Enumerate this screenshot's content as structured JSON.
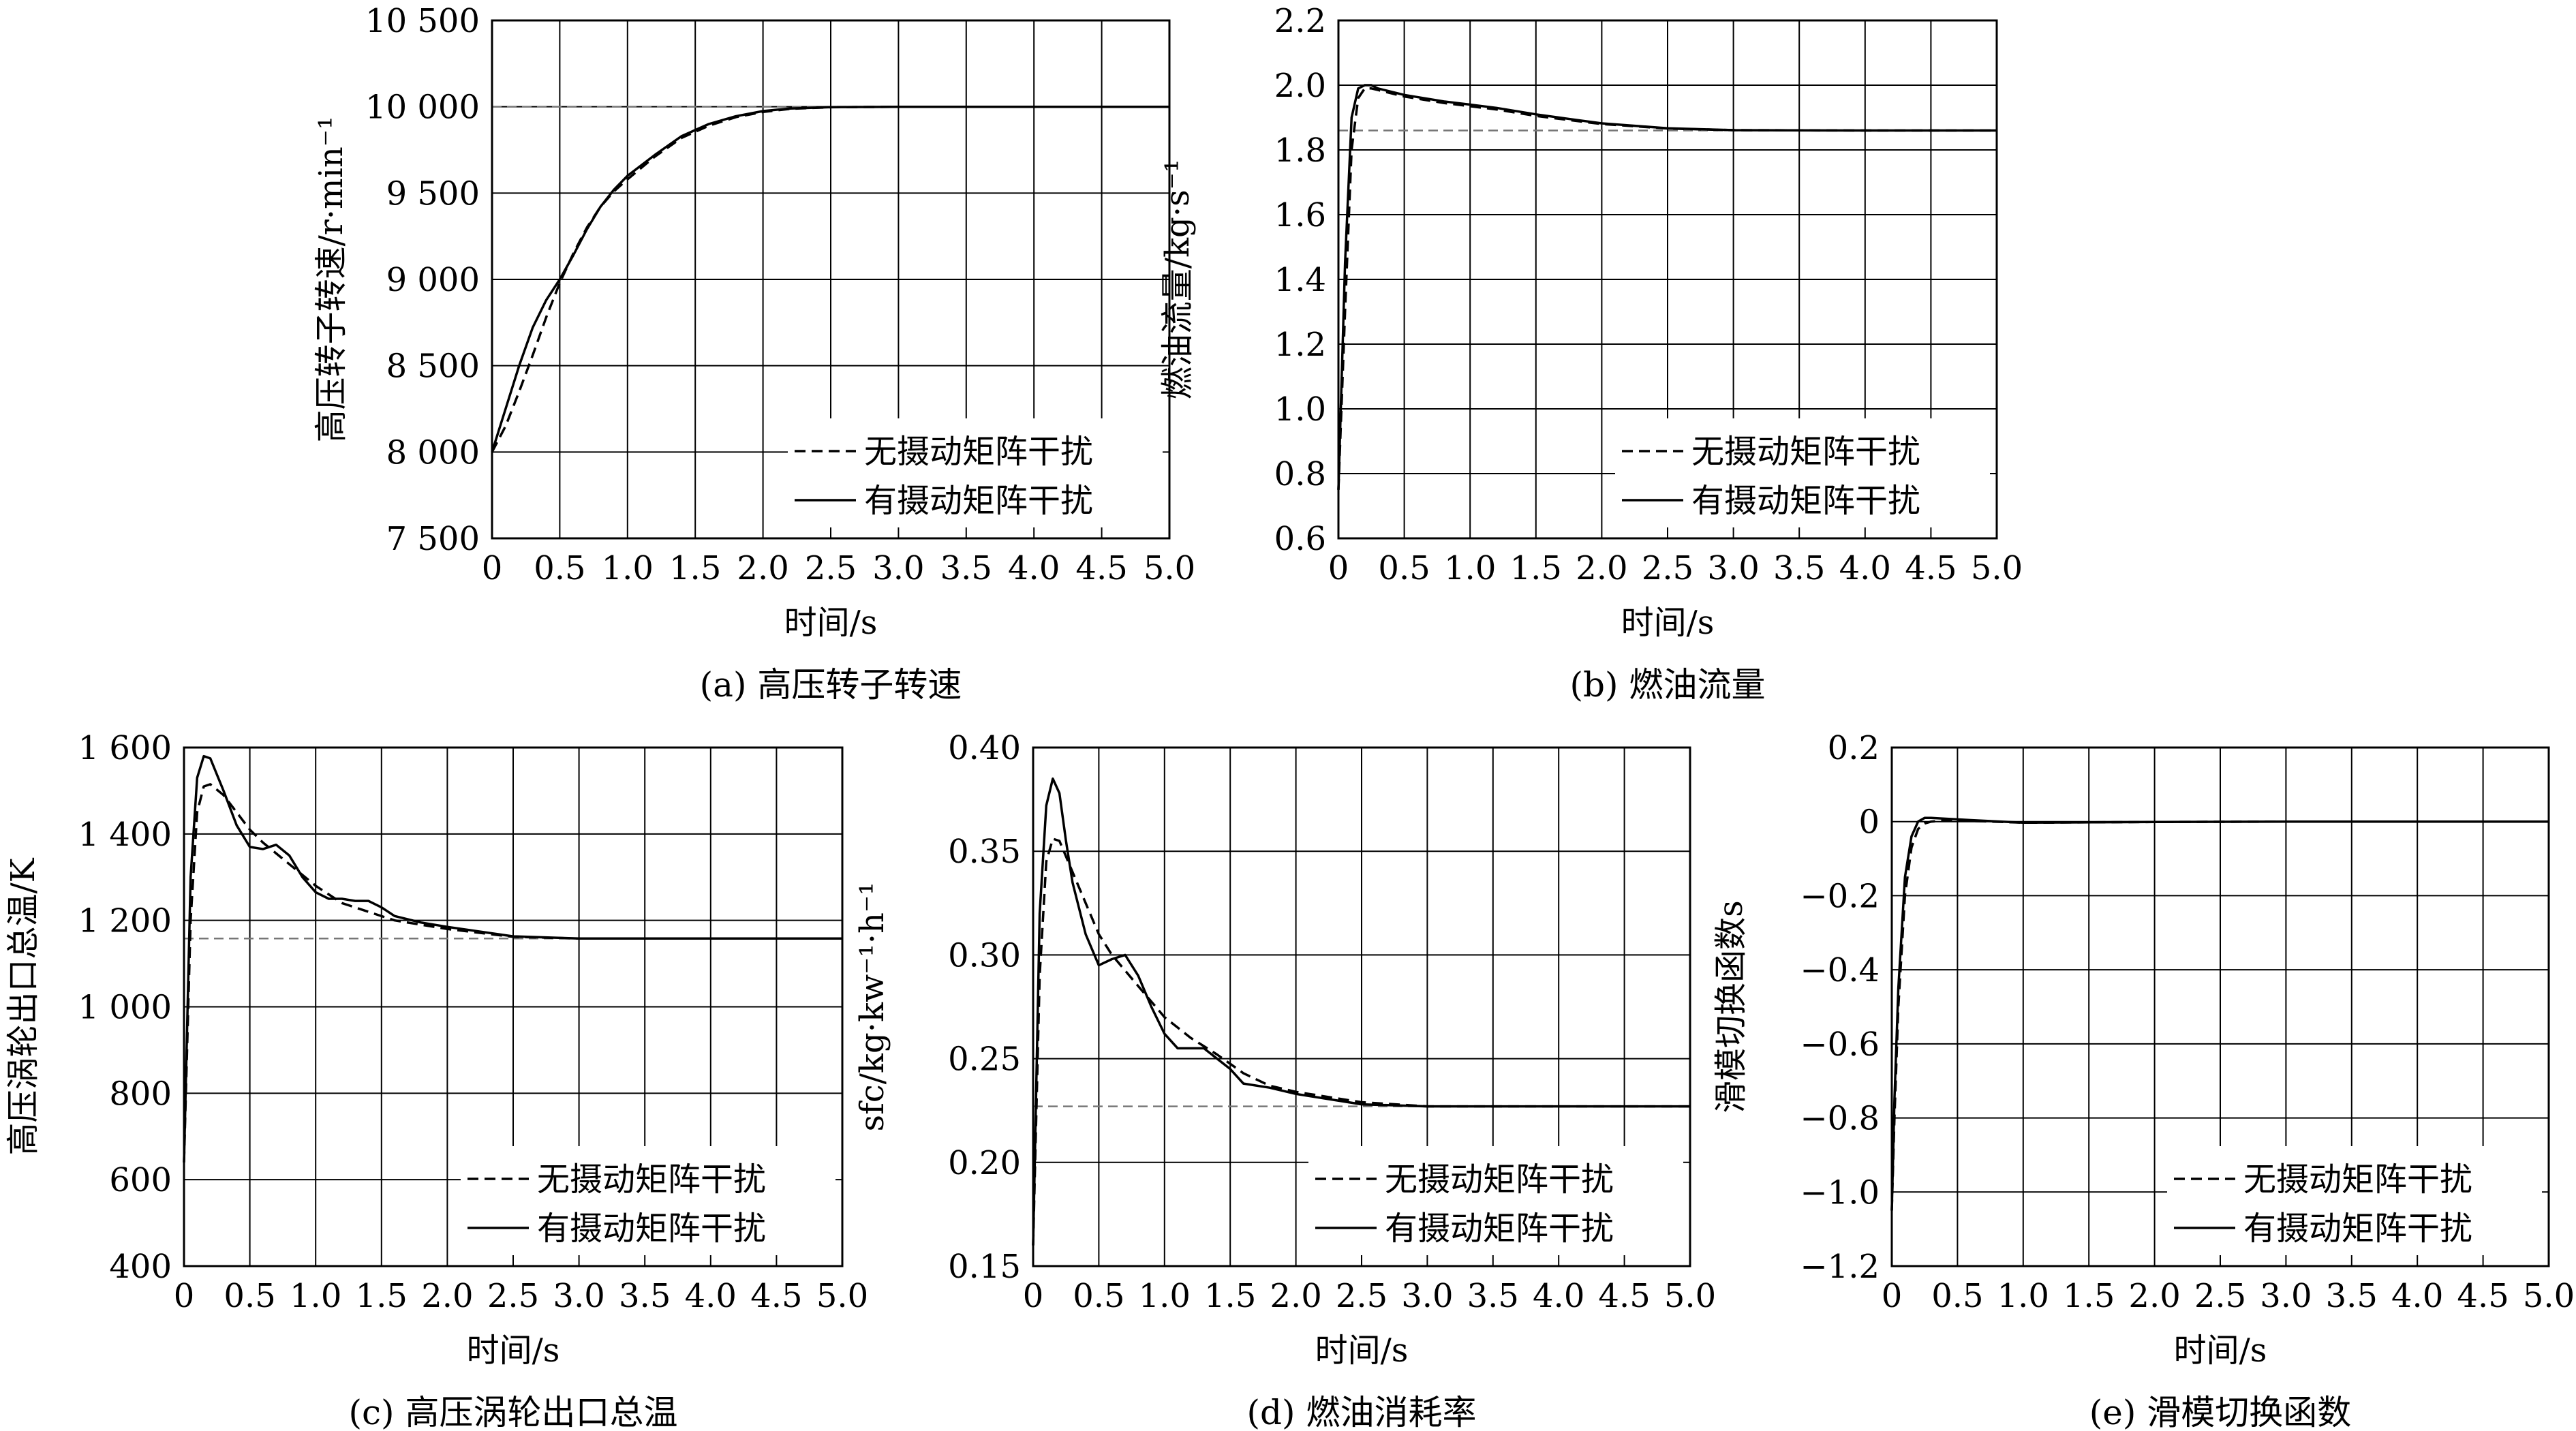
{
  "legend": {
    "dashed_label": "无摄动矩阵干扰",
    "solid_label": "有摄动矩阵干扰"
  },
  "chart_data": [
    {
      "type": "line",
      "caption": "(a) 高压转子转速",
      "xlabel": "时间/s",
      "ylabel": "高压转子转速/r·min⁻¹",
      "xlim": [
        0,
        5.0
      ],
      "ylim": [
        7500,
        10500
      ],
      "xticks": [
        0,
        0.5,
        1.0,
        1.5,
        2.0,
        2.5,
        3.0,
        3.5,
        4.0,
        4.5,
        5.0
      ],
      "xtick_labels": [
        "0",
        "0.5",
        "1.0",
        "1.5",
        "2.0",
        "2.5",
        "3.0",
        "3.5",
        "4.0",
        "4.5",
        "5.0"
      ],
      "yticks": [
        7500,
        8000,
        8500,
        9000,
        9500,
        10000,
        10500
      ],
      "ytick_labels": [
        "7 500",
        "8 000",
        "8 500",
        "9 000",
        "9 500",
        "10 000",
        "10 500"
      ],
      "grid": true,
      "legend_position": "bottom-right",
      "reference_y": 10000,
      "series": [
        {
          "name": "无摄动矩阵干扰",
          "style": "dashed",
          "x": [
            0,
            0.1,
            0.2,
            0.3,
            0.4,
            0.5,
            0.6,
            0.7,
            0.8,
            0.9,
            1.0,
            1.2,
            1.4,
            1.6,
            1.8,
            2.0,
            2.2,
            2.5,
            3.0,
            3.5,
            4.0,
            5.0
          ],
          "y": [
            8000,
            8150,
            8350,
            8560,
            8780,
            8980,
            9150,
            9300,
            9420,
            9510,
            9580,
            9710,
            9820,
            9890,
            9940,
            9970,
            9988,
            9997,
            10000,
            10000,
            10000,
            10000
          ]
        },
        {
          "name": "有摄动矩阵干扰",
          "style": "solid",
          "x": [
            0,
            0.1,
            0.2,
            0.3,
            0.4,
            0.5,
            0.6,
            0.7,
            0.8,
            0.9,
            1.0,
            1.2,
            1.4,
            1.6,
            1.8,
            2.0,
            2.2,
            2.5,
            3.0,
            3.5,
            4.0,
            5.0
          ],
          "y": [
            8000,
            8250,
            8500,
            8720,
            8880,
            9000,
            9140,
            9290,
            9420,
            9520,
            9600,
            9720,
            9830,
            9900,
            9945,
            9975,
            9990,
            9998,
            10000,
            10000,
            10000,
            10000
          ]
        }
      ]
    },
    {
      "type": "line",
      "caption": "(b) 燃油流量",
      "xlabel": "时间/s",
      "ylabel": "燃油流量/kg·s⁻¹",
      "xlim": [
        0,
        5.0
      ],
      "ylim": [
        0.6,
        2.2
      ],
      "xticks": [
        0,
        0.5,
        1.0,
        1.5,
        2.0,
        2.5,
        3.0,
        3.5,
        4.0,
        4.5,
        5.0
      ],
      "xtick_labels": [
        "0",
        "0.5",
        "1.0",
        "1.5",
        "2.0",
        "2.5",
        "3.0",
        "3.5",
        "4.0",
        "4.5",
        "5.0"
      ],
      "yticks": [
        0.6,
        0.8,
        1.0,
        1.2,
        1.4,
        1.6,
        1.8,
        2.0,
        2.2
      ],
      "ytick_labels": [
        "0.6",
        "0.8",
        "1.0",
        "1.2",
        "1.4",
        "1.6",
        "1.8",
        "2.0",
        "2.2"
      ],
      "grid": true,
      "legend_position": "bottom-right",
      "reference_y": 1.86,
      "series": [
        {
          "name": "无摄动矩阵干扰",
          "style": "dashed",
          "x": [
            0,
            0.05,
            0.1,
            0.15,
            0.2,
            0.25,
            0.3,
            0.5,
            0.8,
            1.0,
            1.2,
            1.5,
            1.8,
            2.0,
            2.5,
            3.0,
            4.0,
            5.0
          ],
          "y": [
            0.75,
            1.3,
            1.8,
            1.96,
            1.99,
            1.99,
            1.985,
            1.965,
            1.945,
            1.935,
            1.925,
            1.905,
            1.89,
            1.88,
            1.866,
            1.861,
            1.86,
            1.86
          ]
        },
        {
          "name": "有摄动矩阵干扰",
          "style": "solid",
          "x": [
            0,
            0.05,
            0.1,
            0.15,
            0.2,
            0.25,
            0.3,
            0.5,
            0.8,
            1.0,
            1.2,
            1.5,
            1.8,
            2.0,
            2.5,
            3.0,
            4.0,
            5.0
          ],
          "y": [
            0.75,
            1.45,
            1.9,
            1.99,
            2.0,
            2.0,
            1.99,
            1.97,
            1.95,
            1.94,
            1.93,
            1.91,
            1.893,
            1.882,
            1.867,
            1.861,
            1.86,
            1.86
          ]
        }
      ]
    },
    {
      "type": "line",
      "caption": "(c) 高压涡轮出口总温",
      "xlabel": "时间/s",
      "ylabel": "高压涡轮出口总温/K",
      "xlim": [
        0,
        5.0
      ],
      "ylim": [
        400,
        1600
      ],
      "xticks": [
        0,
        0.5,
        1.0,
        1.5,
        2.0,
        2.5,
        3.0,
        3.5,
        4.0,
        4.5,
        5.0
      ],
      "xtick_labels": [
        "0",
        "0.5",
        "1.0",
        "1.5",
        "2.0",
        "2.5",
        "3.0",
        "3.5",
        "4.0",
        "4.5",
        "5.0"
      ],
      "yticks": [
        400,
        600,
        800,
        1000,
        1200,
        1400,
        1600
      ],
      "ytick_labels": [
        "400",
        "600",
        "800",
        "1 000",
        "1 200",
        "1 400",
        "1 600"
      ],
      "grid": true,
      "legend_position": "bottom-right",
      "reference_y": 1158,
      "series": [
        {
          "name": "无摄动矩阵干扰",
          "style": "dashed",
          "x": [
            0,
            0.05,
            0.1,
            0.15,
            0.2,
            0.3,
            0.4,
            0.5,
            0.6,
            0.8,
            1.0,
            1.2,
            1.4,
            1.6,
            1.8,
            2.0,
            2.5,
            3.0,
            4.0,
            5.0
          ],
          "y": [
            640,
            1200,
            1450,
            1510,
            1515,
            1490,
            1450,
            1410,
            1380,
            1330,
            1280,
            1240,
            1220,
            1200,
            1190,
            1180,
            1162,
            1158,
            1158,
            1158
          ]
        },
        {
          "name": "有摄动矩阵干扰",
          "style": "solid",
          "x": [
            0,
            0.05,
            0.1,
            0.15,
            0.2,
            0.3,
            0.4,
            0.5,
            0.6,
            0.7,
            0.8,
            0.9,
            1.0,
            1.1,
            1.2,
            1.3,
            1.4,
            1.5,
            1.6,
            1.8,
            2.0,
            2.5,
            3.0,
            4.0,
            5.0
          ],
          "y": [
            640,
            1300,
            1530,
            1580,
            1575,
            1500,
            1420,
            1370,
            1365,
            1375,
            1350,
            1300,
            1265,
            1250,
            1250,
            1245,
            1245,
            1230,
            1210,
            1195,
            1185,
            1163,
            1158,
            1158,
            1158
          ]
        }
      ]
    },
    {
      "type": "line",
      "caption": "(d) 燃油消耗率",
      "xlabel": "时间/s",
      "ylabel": "sfc/kg·kw⁻¹·h⁻¹",
      "xlim": [
        0,
        5.0
      ],
      "ylim": [
        0.15,
        0.4
      ],
      "xticks": [
        0,
        0.5,
        1.0,
        1.5,
        2.0,
        2.5,
        3.0,
        3.5,
        4.0,
        4.5,
        5.0
      ],
      "xtick_labels": [
        "0",
        "0.5",
        "1.0",
        "1.5",
        "2.0",
        "2.5",
        "3.0",
        "3.5",
        "4.0",
        "4.5",
        "5.0"
      ],
      "yticks": [
        0.15,
        0.2,
        0.25,
        0.3,
        0.35,
        0.4
      ],
      "ytick_labels": [
        "0.15",
        "0.20",
        "0.25",
        "0.30",
        "0.35",
        "0.40"
      ],
      "grid": true,
      "legend_position": "bottom-right",
      "reference_y": 0.227,
      "series": [
        {
          "name": "无摄动矩阵干扰",
          "style": "dashed",
          "x": [
            0,
            0.05,
            0.1,
            0.15,
            0.2,
            0.3,
            0.4,
            0.5,
            0.6,
            0.8,
            1.0,
            1.2,
            1.4,
            1.6,
            1.8,
            2.0,
            2.5,
            3.0,
            4.0,
            5.0
          ],
          "y": [
            0.16,
            0.29,
            0.345,
            0.356,
            0.355,
            0.34,
            0.325,
            0.31,
            0.3,
            0.285,
            0.27,
            0.26,
            0.252,
            0.243,
            0.237,
            0.234,
            0.229,
            0.227,
            0.227,
            0.227
          ]
        },
        {
          "name": "有摄动矩阵干扰",
          "style": "solid",
          "x": [
            0,
            0.05,
            0.1,
            0.15,
            0.2,
            0.25,
            0.3,
            0.4,
            0.5,
            0.6,
            0.7,
            0.8,
            0.9,
            1.0,
            1.1,
            1.2,
            1.3,
            1.4,
            1.5,
            1.6,
            1.8,
            2.0,
            2.5,
            3.0,
            4.0,
            5.0
          ],
          "y": [
            0.16,
            0.32,
            0.372,
            0.385,
            0.378,
            0.355,
            0.335,
            0.31,
            0.295,
            0.298,
            0.3,
            0.29,
            0.275,
            0.262,
            0.255,
            0.255,
            0.255,
            0.25,
            0.245,
            0.238,
            0.236,
            0.233,
            0.228,
            0.227,
            0.227,
            0.227
          ]
        }
      ]
    },
    {
      "type": "line",
      "caption": "(e) 滑模切换函数",
      "xlabel": "时间/s",
      "ylabel": "滑模切换函数s",
      "xlim": [
        0,
        5.0
      ],
      "ylim": [
        -1.2,
        0.2
      ],
      "xticks": [
        0,
        0.5,
        1.0,
        1.5,
        2.0,
        2.5,
        3.0,
        3.5,
        4.0,
        4.5,
        5.0
      ],
      "xtick_labels": [
        "0",
        "0.5",
        "1.0",
        "1.5",
        "2.0",
        "2.5",
        "3.0",
        "3.5",
        "4.0",
        "4.5",
        "5.0"
      ],
      "yticks": [
        -1.2,
        -1.0,
        -0.8,
        -0.6,
        -0.4,
        -0.2,
        0,
        0.2
      ],
      "ytick_labels": [
        "−1.2",
        "−1.0",
        "−0.8",
        "−0.6",
        "−0.4",
        "−0.2",
        "0",
        "0.2"
      ],
      "grid": true,
      "legend_position": "bottom-right",
      "series": [
        {
          "name": "无摄动矩阵干扰",
          "style": "dashed",
          "x": [
            0,
            0.02,
            0.05,
            0.1,
            0.15,
            0.2,
            0.25,
            0.3,
            0.4,
            0.6,
            1.0,
            2.0,
            3.0,
            5.0
          ],
          "y": [
            -1.05,
            -0.8,
            -0.5,
            -0.2,
            -0.07,
            -0.02,
            -0.005,
            0.0,
            0.003,
            0.002,
            -0.003,
            -0.001,
            0,
            0
          ]
        },
        {
          "name": "有摄动矩阵干扰",
          "style": "solid",
          "x": [
            0,
            0.02,
            0.05,
            0.1,
            0.15,
            0.2,
            0.25,
            0.3,
            0.4,
            0.6,
            1.0,
            2.0,
            3.0,
            5.0
          ],
          "y": [
            -1.05,
            -0.75,
            -0.45,
            -0.15,
            -0.04,
            0.0,
            0.01,
            0.01,
            0.008,
            0.004,
            -0.003,
            -0.001,
            0,
            0
          ]
        }
      ]
    }
  ]
}
